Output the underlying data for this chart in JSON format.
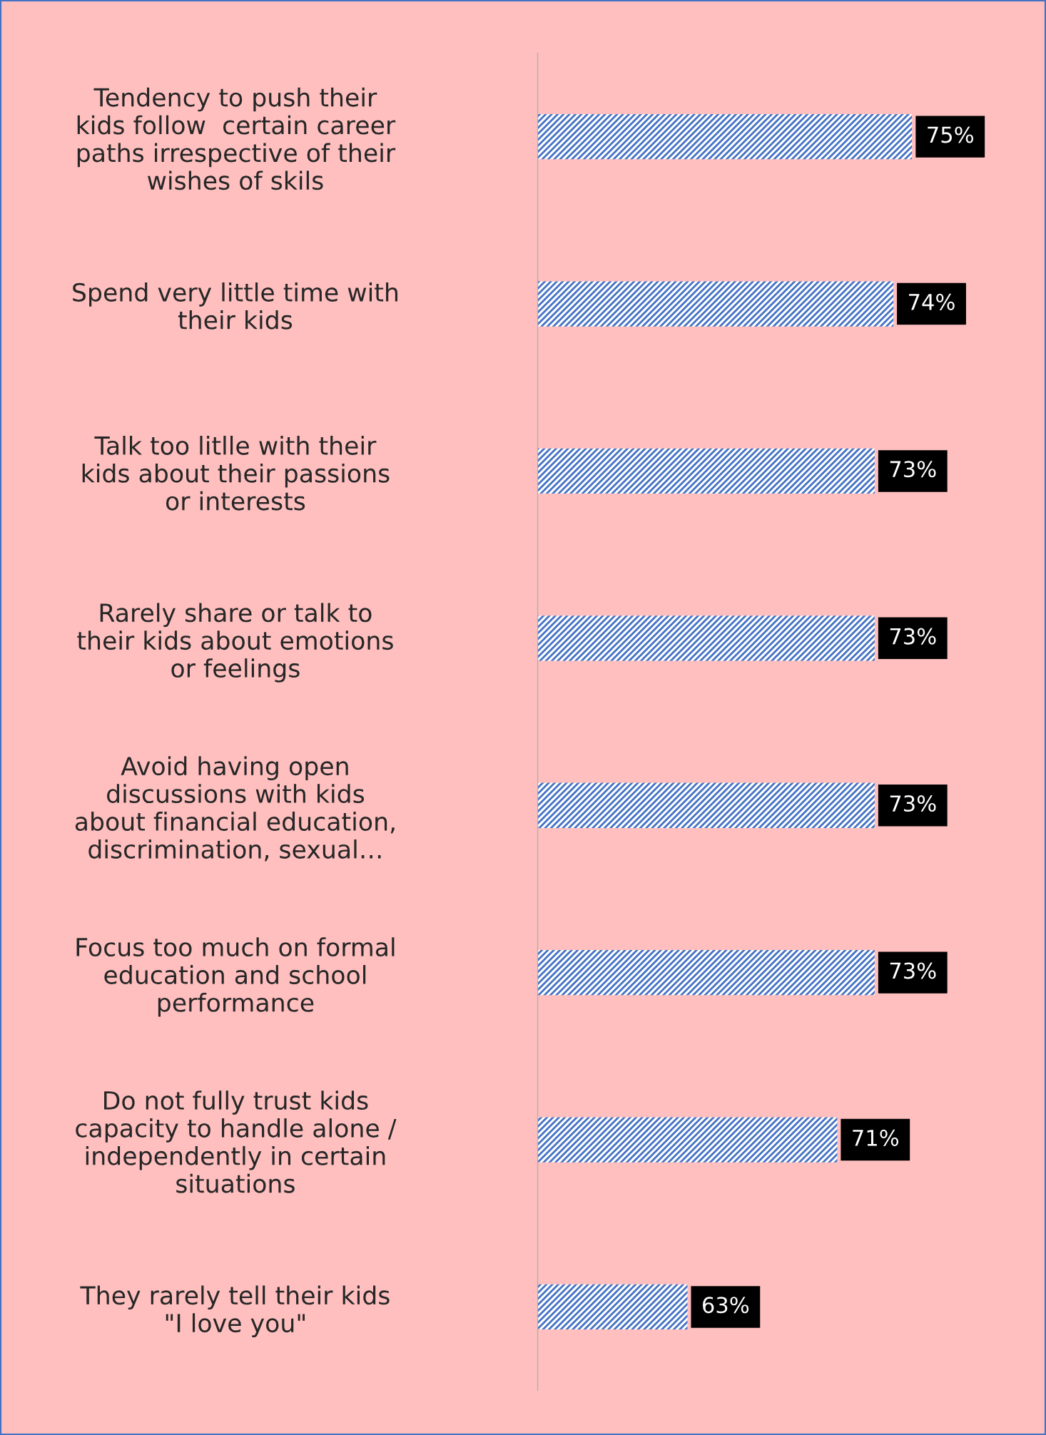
{
  "chart_data": {
    "type": "bar",
    "orientation": "horizontal",
    "categories": [
      "Tendency to push their\nkids follow  certain career\npaths irrespective of their\nwishes of skils",
      "Spend very little time with\ntheir kids",
      "Talk too litlle with their\nkids about their passions\nor interests",
      "Rarely share or talk to\ntheir kids about emotions\nor feelings",
      "Avoid having open\ndiscussions with kids\nabout financial education,\ndiscrimination, sexual…",
      "Focus too much on formal\neducation and school\nperformance",
      "Do not fully trust kids\ncapacity to handle alone /\nindependently in certain\nsituations",
      "They rarely tell their kids\n\"I love you\""
    ],
    "values": [
      75,
      74,
      73,
      73,
      73,
      73,
      71,
      63
    ],
    "value_labels": [
      "75%",
      "74%",
      "73%",
      "73%",
      "73%",
      "73%",
      "71%",
      "63%"
    ],
    "color": "#4472c4",
    "xlim": [
      55,
      75
    ],
    "tick_labels": "y",
    "grid": false,
    "legend": false
  }
}
